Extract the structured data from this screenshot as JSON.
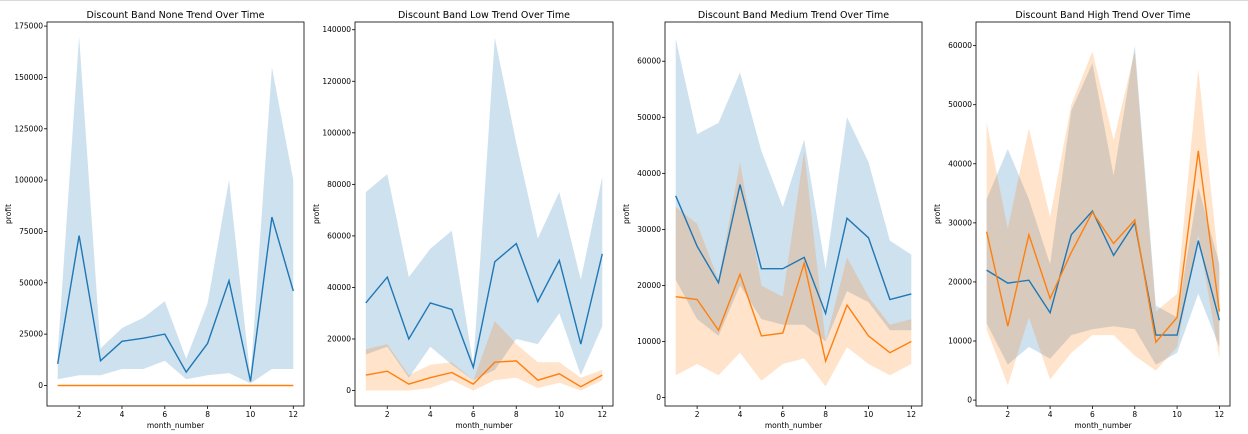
{
  "colors": {
    "series_primary": "#1f77b4",
    "series_secondary": "#ff7f0e",
    "band_primary": "#1f77b4",
    "band_secondary": "#ff7f0e"
  },
  "chart_data": [
    {
      "type": "line",
      "title": "Discount Band  None  Trend Over Time",
      "xlabel": "month_number",
      "ylabel": "profit",
      "xlim": [
        0.5,
        12.5
      ],
      "ylim": [
        -10000,
        177000
      ],
      "xticks": [
        2,
        4,
        6,
        8,
        10,
        12
      ],
      "yticks": [
        0,
        25000,
        50000,
        75000,
        100000,
        125000,
        150000,
        175000
      ],
      "x": [
        1,
        2,
        3,
        4,
        5,
        6,
        7,
        8,
        9,
        10,
        11,
        12
      ],
      "series": [
        {
          "values": [
            10500,
            73000,
            12000,
            21500,
            23000,
            25000,
            6500,
            20500,
            51000,
            2000,
            82000,
            46000
          ],
          "ci_low": [
            3000,
            5000,
            5000,
            8000,
            8000,
            12000,
            3000,
            5000,
            6000,
            1000,
            8000,
            8000
          ],
          "ci_high": [
            16000,
            170000,
            18000,
            28000,
            33000,
            41000,
            13000,
            40000,
            100000,
            4000,
            155000,
            100000
          ]
        },
        {
          "values": [
            0,
            0,
            0,
            0,
            0,
            0,
            0,
            0,
            0,
            0,
            0,
            0
          ],
          "ci_low": [
            0,
            0,
            0,
            0,
            0,
            0,
            0,
            0,
            0,
            0,
            0,
            0
          ],
          "ci_high": [
            0,
            0,
            0,
            0,
            0,
            0,
            0,
            0,
            0,
            0,
            0,
            0
          ]
        }
      ]
    },
    {
      "type": "line",
      "title": "Discount Band  Low  Trend Over Time",
      "xlabel": "month_number",
      "ylabel": "profit",
      "xlim": [
        0.5,
        12.5
      ],
      "ylim": [
        -6000,
        143000
      ],
      "xticks": [
        2,
        4,
        6,
        8,
        10,
        12
      ],
      "yticks": [
        0,
        20000,
        40000,
        60000,
        80000,
        100000,
        120000,
        140000
      ],
      "x": [
        1,
        2,
        3,
        4,
        5,
        6,
        7,
        8,
        9,
        10,
        11,
        12
      ],
      "series": [
        {
          "values": [
            34000,
            44000,
            20000,
            34000,
            31500,
            9000,
            50000,
            57000,
            34500,
            50500,
            18000,
            53000
          ],
          "ci_low": [
            14000,
            17000,
            5000,
            17000,
            10000,
            4000,
            8000,
            20000,
            18000,
            30000,
            6000,
            25000
          ],
          "ci_high": [
            77000,
            84000,
            44000,
            55000,
            62000,
            10000,
            137000,
            96000,
            59000,
            77000,
            43000,
            83000
          ]
        },
        {
          "values": [
            6000,
            7500,
            2500,
            5000,
            7000,
            2500,
            11000,
            11500,
            4000,
            6500,
            1500,
            6000
          ],
          "ci_low": [
            0,
            0,
            0,
            1000,
            4000,
            0,
            4000,
            5000,
            1000,
            3000,
            0,
            4000
          ],
          "ci_high": [
            16000,
            18000,
            6000,
            10000,
            11000,
            4000,
            27000,
            18000,
            11000,
            11000,
            5000,
            8000
          ]
        }
      ]
    },
    {
      "type": "line",
      "title": "Discount Band  Medium  Trend Over Time",
      "xlabel": "month_number",
      "ylabel": "profit",
      "xlim": [
        0.5,
        12.5
      ],
      "ylim": [
        -1500,
        67000
      ],
      "xticks": [
        2,
        4,
        6,
        8,
        10,
        12
      ],
      "yticks": [
        0,
        10000,
        20000,
        30000,
        40000,
        50000,
        60000
      ],
      "x": [
        1,
        2,
        3,
        4,
        5,
        6,
        7,
        8,
        9,
        10,
        11,
        12
      ],
      "series": [
        {
          "values": [
            36000,
            27000,
            20500,
            38000,
            23000,
            23000,
            25000,
            15000,
            32000,
            28500,
            17500,
            18500
          ],
          "ci_low": [
            21000,
            14000,
            11000,
            20000,
            14000,
            13000,
            13000,
            10000,
            19000,
            17000,
            12000,
            12000
          ],
          "ci_high": [
            64000,
            47000,
            49000,
            58000,
            44000,
            34000,
            46000,
            23000,
            50000,
            42000,
            28000,
            25500
          ]
        },
        {
          "values": [
            18000,
            17500,
            12000,
            22000,
            11000,
            11500,
            24000,
            6500,
            16500,
            11000,
            8000,
            10000
          ],
          "ci_low": [
            4000,
            6000,
            4000,
            8000,
            3000,
            6000,
            7000,
            2000,
            9000,
            6000,
            4000,
            6000
          ],
          "ci_high": [
            34000,
            31000,
            21000,
            42000,
            20000,
            18000,
            44000,
            10000,
            25000,
            18000,
            13000,
            14000
          ]
        }
      ]
    },
    {
      "type": "line",
      "title": "Discount Band  High  Trend Over Time",
      "xlabel": "month_number",
      "ylabel": "profit",
      "xlim": [
        0.5,
        12.5
      ],
      "ylim": [
        -1000,
        64000
      ],
      "xticks": [
        2,
        4,
        6,
        8,
        10,
        12
      ],
      "yticks": [
        0,
        10000,
        20000,
        30000,
        40000,
        50000,
        60000
      ],
      "x": [
        1,
        2,
        3,
        4,
        5,
        6,
        7,
        8,
        9,
        10,
        11,
        12
      ],
      "series": [
        {
          "values": [
            22000,
            19800,
            20300,
            14800,
            28000,
            32000,
            24500,
            30000,
            11000,
            11000,
            27000,
            13500
          ],
          "ci_low": [
            13000,
            6000,
            9000,
            7000,
            11000,
            12000,
            12500,
            12000,
            6000,
            8000,
            18000,
            9000
          ],
          "ci_high": [
            34000,
            42500,
            34000,
            23000,
            49000,
            57000,
            38000,
            60000,
            16000,
            14000,
            36000,
            23000
          ]
        },
        {
          "values": [
            28500,
            12500,
            28000,
            17200,
            25000,
            31800,
            26500,
            30500,
            9800,
            14000,
            42200,
            15000
          ],
          "ci_low": [
            12000,
            2500,
            14000,
            3500,
            8000,
            11000,
            11000,
            7500,
            5000,
            9000,
            28000,
            7000
          ],
          "ci_high": [
            47000,
            29000,
            46000,
            31000,
            50000,
            59000,
            44000,
            59000,
            15000,
            18000,
            56000,
            22000
          ]
        }
      ]
    }
  ]
}
